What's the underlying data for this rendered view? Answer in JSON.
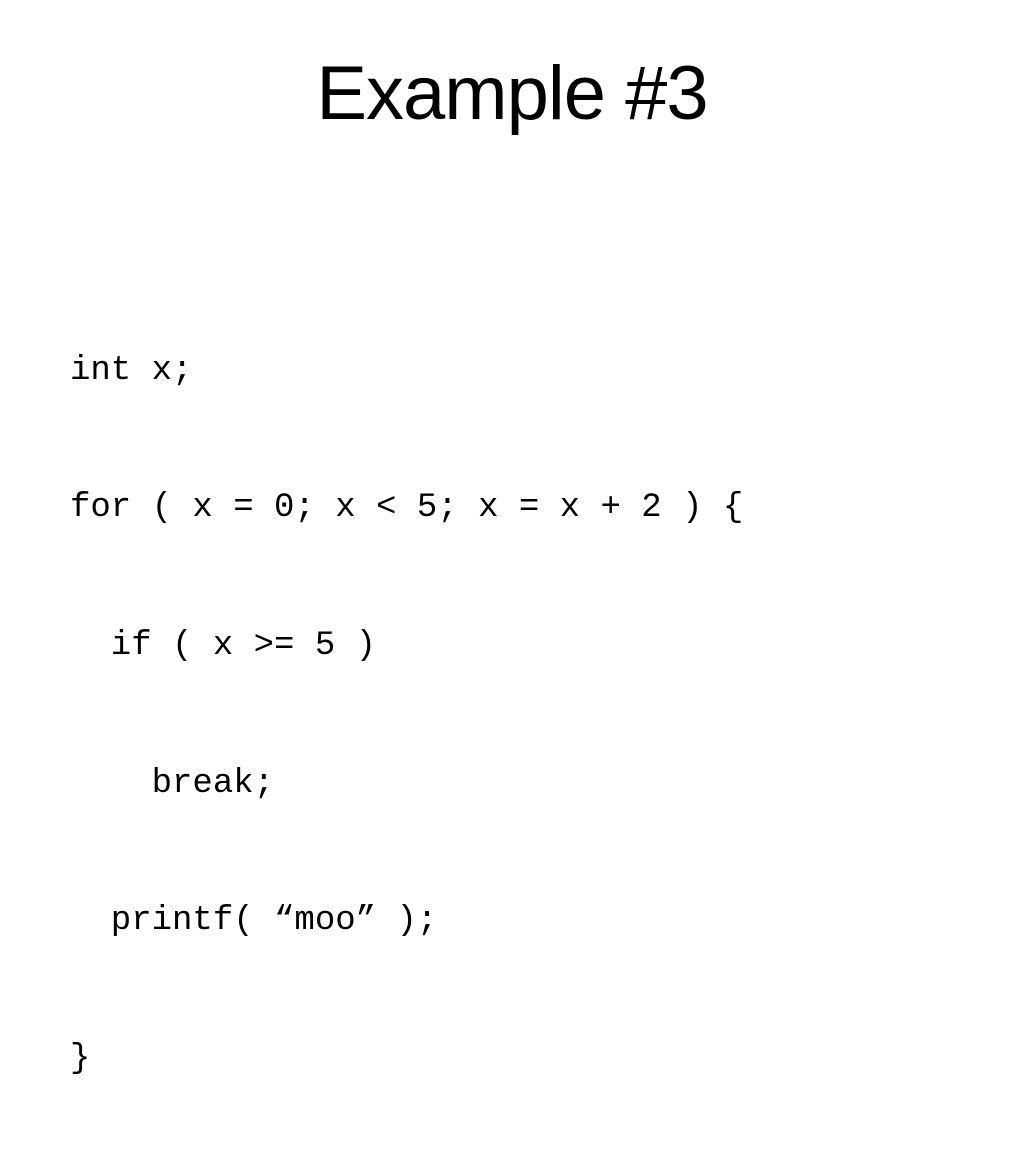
{
  "slide": {
    "title": "Example #3",
    "title_fontsize": 76,
    "title_color": "#000000",
    "title_font": "Arial",
    "background_color": "#ffffff",
    "code": {
      "font": "Courier New",
      "fontsize": 34,
      "color": "#000000",
      "lines": [
        "int x;",
        "for ( x = 0; x < 5; x = x + 2 ) {",
        "  if ( x >= 5 )",
        "    break;",
        "  printf( “moo” );",
        "}"
      ]
    }
  }
}
